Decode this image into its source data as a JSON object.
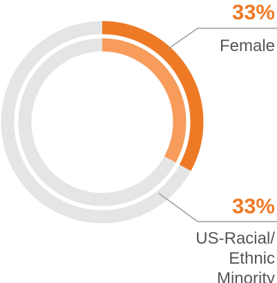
{
  "chart_data": {
    "type": "pie",
    "subtype": "concentric-ring-gauges",
    "series": [
      {
        "value_label": "33%",
        "value": 33,
        "label_lines": [
          "Female"
        ],
        "color": "#ee7a26"
      },
      {
        "value_label": "33%",
        "value": 33,
        "label_lines": [
          "US-Racial/",
          "Ethnic",
          "Minority"
        ],
        "color": "#f79c5b"
      }
    ],
    "track_color": "#e5e5e5",
    "leader_color": "#9a9a9a",
    "text_color": "#555555"
  }
}
